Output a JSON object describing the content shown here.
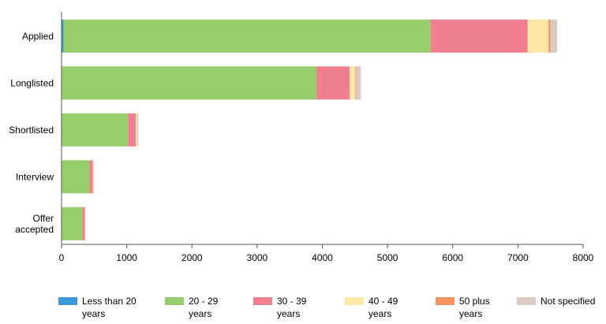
{
  "chart_data": {
    "type": "bar",
    "orientation": "horizontal",
    "stacked": true,
    "categories": [
      [
        "Applied"
      ],
      [
        "Longlisted"
      ],
      [
        "Shortlisted"
      ],
      [
        "Interview"
      ],
      [
        "Offer",
        "accepted"
      ]
    ],
    "series": [
      {
        "name": [
          "Less than 20",
          "years"
        ],
        "color": "#3a9ad9",
        "values": [
          30,
          0,
          0,
          0,
          0
        ]
      },
      {
        "name": [
          "20 - 29",
          "years"
        ],
        "color": "#96ce6c",
        "values": [
          5630,
          3910,
          1020,
          430,
          320
        ]
      },
      {
        "name": [
          "30 - 39",
          "years"
        ],
        "color": "#f07f90",
        "values": [
          1490,
          510,
          120,
          50,
          40
        ]
      },
      {
        "name": [
          "40 - 49",
          "years"
        ],
        "color": "#ffe8a6",
        "values": [
          320,
          80,
          20,
          10,
          5
        ]
      },
      {
        "name": [
          "50 plus",
          "years"
        ],
        "color": "#f7935e",
        "values": [
          30,
          10,
          0,
          0,
          0
        ]
      },
      {
        "name": [
          "Not specified",
          ""
        ],
        "color": "#dbcac1",
        "values": [
          100,
          80,
          20,
          5,
          5
        ]
      }
    ],
    "xlim": [
      0,
      8000
    ],
    "xticks": [
      0,
      1000,
      2000,
      3000,
      4000,
      5000,
      6000,
      7000,
      8000
    ],
    "grid": false,
    "legend_position": "bottom"
  }
}
